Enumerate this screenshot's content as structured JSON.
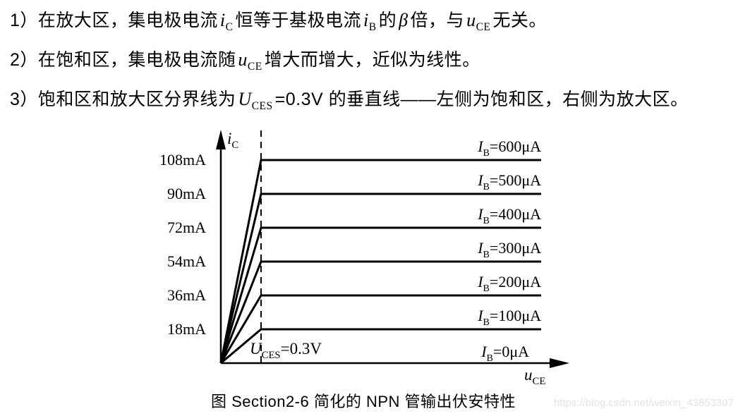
{
  "page": {
    "notes": [
      {
        "segments": [
          {
            "t": "1）在放大区，集电极电流"
          },
          {
            "v": "i",
            "sub": "C"
          },
          {
            "t": "恒等于基极电流"
          },
          {
            "v": "i",
            "sub": "B"
          },
          {
            "t": "的"
          },
          {
            "v": "β"
          },
          {
            "t": "倍，与"
          },
          {
            "v": "u",
            "sub": "CE"
          },
          {
            "t": "无关。"
          }
        ]
      },
      {
        "segments": [
          {
            "t": "2）在饱和区，集电极电流随"
          },
          {
            "v": "u",
            "sub": "CE"
          },
          {
            "t": "增大而增大，近似为线性。"
          }
        ]
      },
      {
        "segments": [
          {
            "t": "3）饱和区和放大区分界线为"
          },
          {
            "v": "U",
            "sub": "CES"
          },
          {
            "t": "=0.3V 的垂直线——左侧为饱和区，右侧为放大区。"
          }
        ]
      }
    ],
    "caption": "图 Section2-6  简化的 NPN 管输出伏安特性",
    "watermark": "https://blog.csdn.net/weixin_43853307"
  },
  "chart_data": {
    "type": "line",
    "title": "简化的 NPN 管输出伏安特性",
    "xlabel": "uCE",
    "ylabel": "iC",
    "x_axis_label": {
      "base": "u",
      "sub": "CE"
    },
    "y_axis_label": {
      "base": "i",
      "sub": "C"
    },
    "boundary_label": {
      "base": "U",
      "sub": "CES",
      "post": "=0.3V"
    },
    "knee_voltage_V": 0.3,
    "grid": false,
    "y_tick_labels": [
      "108mA",
      "90mA",
      "72mA",
      "54mA",
      "36mA",
      "18mA"
    ],
    "y_ticks_mA": [
      108,
      90,
      72,
      54,
      36,
      18
    ],
    "series": [
      {
        "label": {
          "base": "I",
          "sub": "B",
          "post": "=600μA"
        },
        "ib_uA": 600,
        "ic_sat_mA": 108,
        "flat_after_knee": true
      },
      {
        "label": {
          "base": "I",
          "sub": "B",
          "post": "=500μA"
        },
        "ib_uA": 500,
        "ic_sat_mA": 90,
        "flat_after_knee": true
      },
      {
        "label": {
          "base": "I",
          "sub": "B",
          "post": "=400μA"
        },
        "ib_uA": 400,
        "ic_sat_mA": 72,
        "flat_after_knee": true
      },
      {
        "label": {
          "base": "I",
          "sub": "B",
          "post": "=300μA"
        },
        "ib_uA": 300,
        "ic_sat_mA": 54,
        "flat_after_knee": true
      },
      {
        "label": {
          "base": "I",
          "sub": "B",
          "post": "=200μA"
        },
        "ib_uA": 200,
        "ic_sat_mA": 36,
        "flat_after_knee": true
      },
      {
        "label": {
          "base": "I",
          "sub": "B",
          "post": "=100μA"
        },
        "ib_uA": 100,
        "ic_sat_mA": 18,
        "flat_after_knee": true
      },
      {
        "label": {
          "base": "I",
          "sub": "B",
          "post": "=0μA"
        },
        "ib_uA": 0,
        "ic_sat_mA": 0,
        "flat_after_knee": true
      }
    ],
    "colors": {
      "line": "#000000",
      "text": "#000000"
    }
  }
}
